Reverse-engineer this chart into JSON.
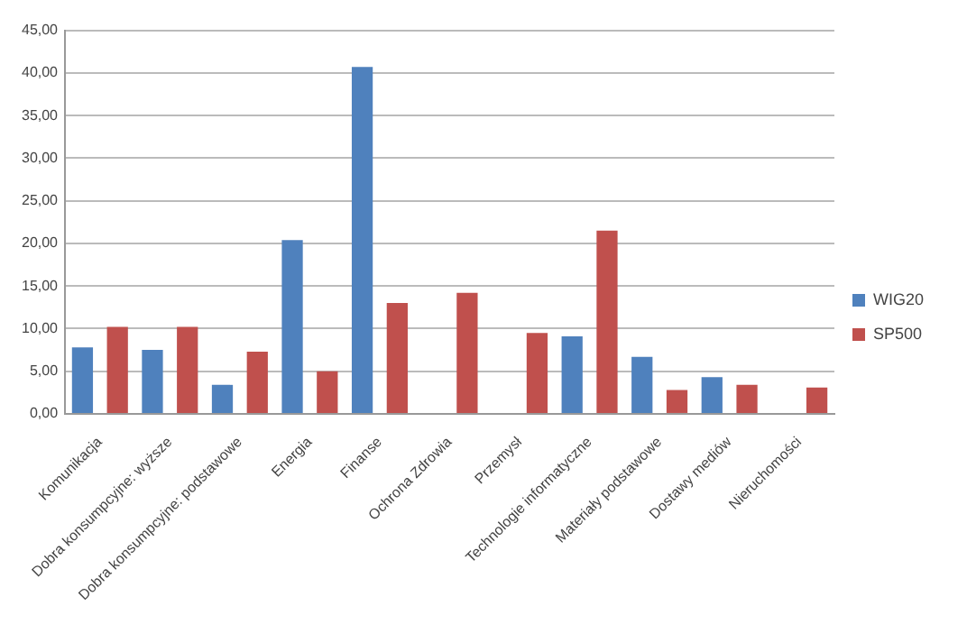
{
  "chart_data": {
    "type": "bar",
    "categories": [
      "Komunikacja",
      "Dobra konsumpcyjne: wyższe",
      "Dobra konsumpcyjne: podstawowe",
      "Energia",
      "Finanse",
      "Ochrona Zdrowia",
      "Przemysł",
      "Technologie informatyczne",
      "Materiały podstawowe",
      "Dostawy mediów",
      "Nieruchomości"
    ],
    "series": [
      {
        "name": "WIG20",
        "color": "#4f81bd",
        "values": [
          7.8,
          7.5,
          3.4,
          20.4,
          40.7,
          null,
          null,
          9.1,
          6.7,
          4.3,
          null
        ]
      },
      {
        "name": "SP500",
        "color": "#c0504d",
        "values": [
          10.2,
          10.2,
          7.3,
          5.0,
          13.0,
          14.2,
          9.5,
          21.5,
          2.8,
          3.4,
          3.1
        ]
      }
    ],
    "ylim": [
      0,
      45
    ],
    "yticks": [
      {
        "value": 0,
        "label": "0,00"
      },
      {
        "value": 5,
        "label": "5,00"
      },
      {
        "value": 10,
        "label": "10,00"
      },
      {
        "value": 15,
        "label": "15,00"
      },
      {
        "value": 20,
        "label": "20,00"
      },
      {
        "value": 25,
        "label": "25,00"
      },
      {
        "value": 30,
        "label": "30,00"
      },
      {
        "value": 35,
        "label": "35,00"
      },
      {
        "value": 40,
        "label": "40,00"
      },
      {
        "value": 45,
        "label": "45,00"
      }
    ],
    "grid": "y",
    "legend": "right"
  }
}
